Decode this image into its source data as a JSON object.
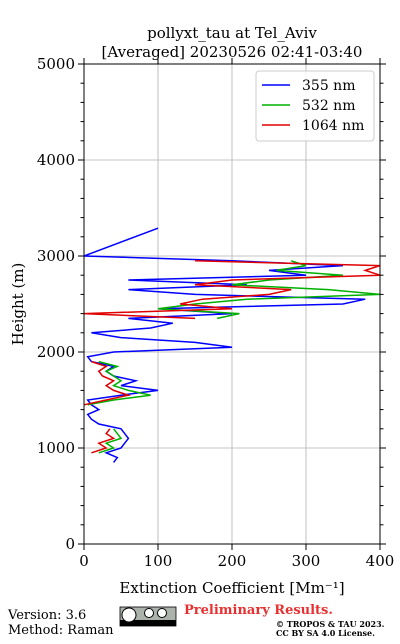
{
  "chart_data": {
    "type": "line",
    "title": "pollyxt_tau at Tel_Aviv",
    "subtitle": "[Averaged] 20230526 02:41-03:40",
    "x_label": "Extinction Coefficient [Mm⁻¹]",
    "y_label": "Height (m)",
    "heights": [
      850,
      900,
      950,
      1000,
      1050,
      1100,
      1150,
      1200,
      1250,
      1300,
      1350,
      1400,
      1450,
      1500,
      1550,
      1600,
      1650,
      1700,
      1750,
      1800,
      1850,
      1900,
      1950,
      2000,
      2050,
      2100,
      2150,
      2200,
      2250,
      2300,
      2350,
      2400,
      2450,
      2500,
      2550,
      2600,
      2650,
      2700,
      2750,
      2800,
      2850,
      2900,
      2950,
      3000,
      3290
    ],
    "series": [
      {
        "name": "355 nm",
        "color": "#0000ff",
        "values": [
          40,
          45,
          30,
          50,
          55,
          60,
          55,
          50,
          20,
          10,
          5,
          20,
          10,
          5,
          50,
          100,
          50,
          70,
          40,
          30,
          40,
          10,
          5,
          40,
          200,
          150,
          50,
          10,
          90,
          120,
          60,
          200,
          100,
          350,
          380,
          150,
          60,
          220,
          60,
          300,
          250,
          350,
          200,
          0,
          100
        ]
      },
      {
        "name": "532 nm",
        "color": "#00b000",
        "values": [
          null,
          null,
          20,
          40,
          30,
          50,
          45,
          40,
          null,
          null,
          null,
          null,
          5,
          40,
          90,
          60,
          40,
          50,
          40,
          30,
          45,
          20,
          null,
          null,
          null,
          null,
          null,
          null,
          null,
          null,
          180,
          210,
          100,
          150,
          220,
          400,
          330,
          200,
          250,
          350,
          260,
          300,
          280,
          null,
          null
        ]
      },
      {
        "name": "1064 nm",
        "color": "#e00000",
        "values": [
          null,
          null,
          10,
          30,
          20,
          40,
          30,
          35,
          null,
          null,
          null,
          null,
          0,
          30,
          60,
          40,
          30,
          40,
          25,
          20,
          30,
          10,
          null,
          null,
          null,
          null,
          null,
          null,
          null,
          null,
          150,
          0,
          200,
          130,
          160,
          250,
          280,
          150,
          200,
          400,
          380,
          400,
          150,
          null,
          null
        ]
      }
    ],
    "xlim": [
      0,
      400
    ],
    "xticks": [
      0,
      100,
      200,
      300,
      400
    ],
    "ylim": [
      0,
      5000
    ],
    "yticks": [
      0,
      1000,
      2000,
      3000,
      4000,
      5000
    ],
    "yticks_minor": [
      200,
      400,
      600,
      800,
      1200,
      1400,
      1600,
      1800,
      2200,
      2400,
      2600,
      2800,
      3200,
      3400,
      3600,
      3800,
      4200,
      4400,
      4600,
      4800
    ],
    "grid": true,
    "legend": "upper right",
    "version": "Version: 3.6",
    "method": "Method: Raman",
    "notice": "Preliminary Results.",
    "copyright": "© TROPOS & TAU 2023.",
    "license": "CC BY SA 4.0 License."
  }
}
